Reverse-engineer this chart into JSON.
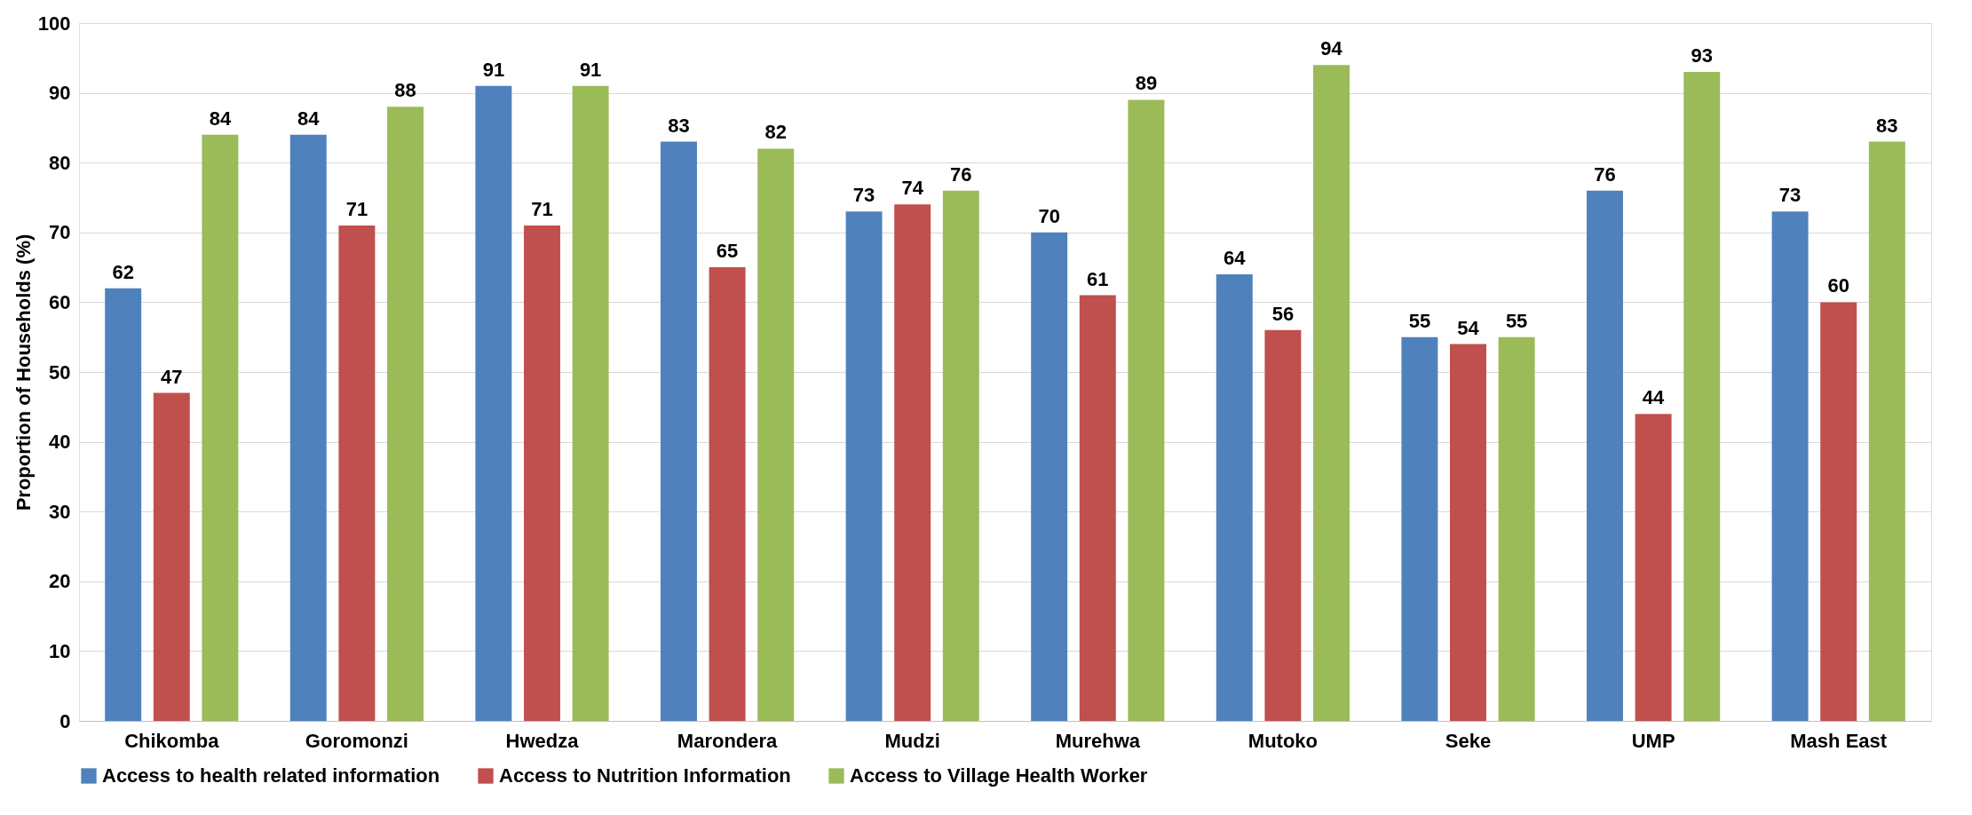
{
  "chart_data": {
    "type": "bar",
    "ylabel": "Proportion of Households (%)",
    "categories": [
      "Chikomba",
      "Goromonzi",
      "Hwedza",
      "Marondera",
      "Mudzi",
      "Murehwa",
      "Mutoko",
      "Seke",
      "UMP",
      "Mash East"
    ],
    "series": [
      {
        "name": "Access to health related information",
        "color": "#4f81bd",
        "values": [
          62,
          84,
          91,
          83,
          73,
          70,
          64,
          55,
          76,
          73
        ]
      },
      {
        "name": "Access to Nutrition Information",
        "color": "#c0504d",
        "values": [
          47,
          71,
          71,
          65,
          74,
          61,
          56,
          54,
          44,
          60
        ]
      },
      {
        "name": "Access to Village Health Worker",
        "color": "#9bbb59",
        "values": [
          84,
          88,
          91,
          82,
          76,
          89,
          94,
          55,
          93,
          83
        ]
      }
    ],
    "ylim": [
      0,
      100
    ],
    "yticks": [
      0,
      10,
      20,
      30,
      40,
      50,
      60,
      70,
      80,
      90,
      100
    ],
    "grid": "y",
    "legend": "bottom",
    "data_labels": true
  }
}
